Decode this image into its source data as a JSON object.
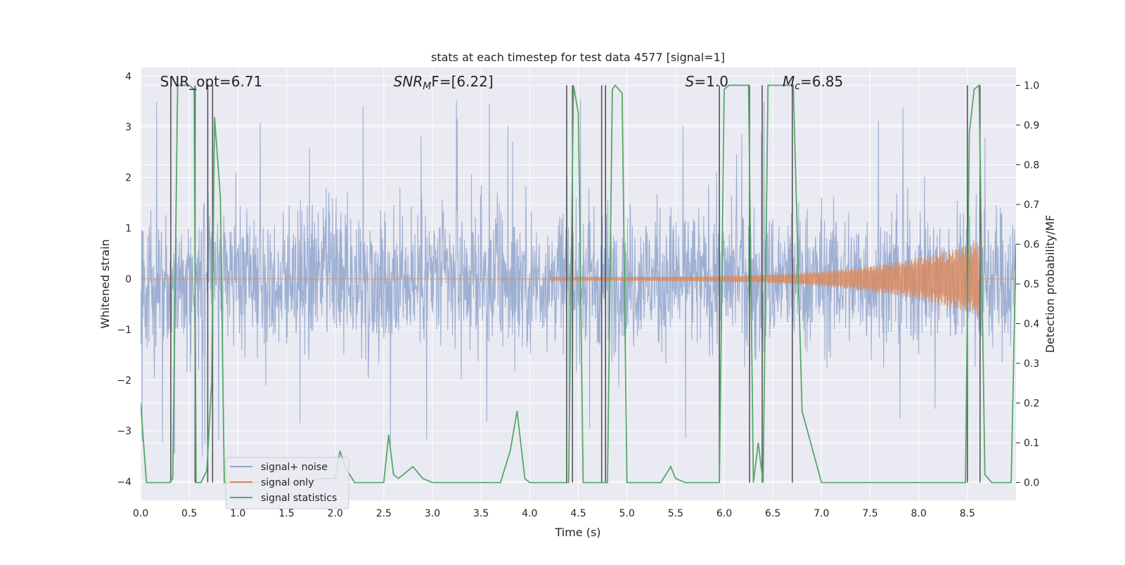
{
  "chart_data": {
    "type": "line",
    "title": "stats at each timestep for test data 4577 [signal=1]",
    "xlabel": "Time (s)",
    "ylabel": "Whitened strain",
    "ylabel_right": "Detection probability/MF",
    "xlim": [
      0.0,
      9.0
    ],
    "ylim": [
      -4.37,
      4.17
    ],
    "ylim_right": [
      -0.045,
      1.045
    ],
    "grid": true,
    "legend_position": "lower-left",
    "x_ticks": [
      "0.0",
      "0.5",
      "1.0",
      "1.5",
      "2.0",
      "2.5",
      "3.0",
      "3.5",
      "4.0",
      "4.5",
      "5.0",
      "5.5",
      "6.0",
      "6.5",
      "7.0",
      "7.5",
      "8.0",
      "8.5"
    ],
    "x_tick_values": [
      0.0,
      0.5,
      1.0,
      1.5,
      2.0,
      2.5,
      3.0,
      3.5,
      4.0,
      4.5,
      5.0,
      5.5,
      6.0,
      6.5,
      7.0,
      7.5,
      8.0,
      8.5
    ],
    "y_ticks": [
      "4",
      "3",
      "2",
      "1",
      "0",
      "−1",
      "−2",
      "−3",
      "−4"
    ],
    "y_tick_values": [
      4,
      3,
      2,
      1,
      0,
      -1,
      -2,
      -3,
      -4
    ],
    "y_ticks_right": [
      "1.0",
      "0.9",
      "0.8",
      "0.7",
      "0.6",
      "0.5",
      "0.4",
      "0.3",
      "0.2",
      "0.1",
      "0.0"
    ],
    "y_tick_values_right": [
      1.0,
      0.9,
      0.8,
      0.7,
      0.6,
      0.5,
      0.4,
      0.3,
      0.2,
      0.1,
      0.0
    ],
    "annotations": [
      {
        "text": "SNR_opt=6.71",
        "x": 0.2
      },
      {
        "text": "SNR",
        "sub": "M",
        "after": "F=[6.22]",
        "italic": true,
        "x": 2.6
      },
      {
        "text": "S",
        "after": "=1.0",
        "italic": true,
        "x": 5.6
      },
      {
        "text": "M",
        "sub": "c",
        "after": "=6.85",
        "italic": true,
        "x": 6.6
      }
    ],
    "series": [
      {
        "name": "signal+ noise",
        "color": "#8fa4cc",
        "kind": "noise",
        "amplitude_typical": 1.3,
        "amplitude_peak": 3.6
      },
      {
        "name": "signal only",
        "color": "#dd8452",
        "kind": "chirp",
        "chirp_start": 4.2,
        "chirp_end": 8.62,
        "peak_amplitude": 0.7
      },
      {
        "name": "signal statistics",
        "color": "#55a868",
        "axis": "right",
        "x": [
          0.0,
          0.06,
          0.2,
          0.3,
          0.33,
          0.38,
          0.5,
          0.55,
          0.57,
          0.62,
          0.68,
          0.73,
          0.76,
          0.82,
          0.86,
          1.0,
          1.2,
          1.35,
          1.5,
          1.7,
          1.85,
          1.95,
          2.0,
          2.05,
          2.1,
          2.2,
          2.3,
          2.4,
          2.5,
          2.55,
          2.6,
          2.65,
          2.7,
          2.8,
          2.9,
          3.0,
          3.2,
          3.5,
          3.7,
          3.8,
          3.87,
          3.95,
          4.0,
          4.2,
          4.4,
          4.45,
          4.5,
          4.55,
          4.6,
          4.75,
          4.8,
          4.85,
          4.88,
          4.95,
          5.0,
          5.2,
          5.35,
          5.45,
          5.5,
          5.6,
          5.7,
          5.95,
          6.0,
          6.05,
          6.25,
          6.3,
          6.35,
          6.4,
          6.45,
          6.5,
          6.66,
          6.71,
          6.8,
          7.0,
          7.5,
          8.0,
          8.48,
          8.52,
          8.57,
          8.62,
          8.68,
          8.75,
          8.85,
          8.9,
          8.95,
          9.0
        ],
        "y": [
          0.2,
          0.0,
          0.0,
          0.0,
          0.01,
          1.0,
          1.0,
          0.99,
          0.0,
          0.0,
          0.03,
          0.25,
          0.92,
          0.72,
          0.0,
          0.0,
          0.0,
          0.0,
          0.0,
          0.0,
          0.01,
          0.01,
          0.01,
          0.08,
          0.04,
          0.0,
          0.0,
          0.0,
          0.0,
          0.12,
          0.02,
          0.01,
          0.02,
          0.04,
          0.01,
          0.0,
          0.0,
          0.0,
          0.0,
          0.08,
          0.18,
          0.01,
          0.0,
          0.0,
          0.0,
          1.0,
          0.93,
          0.0,
          0.0,
          0.0,
          0.0,
          0.99,
          1.0,
          0.98,
          0.0,
          0.0,
          0.0,
          0.04,
          0.01,
          0.0,
          0.0,
          0.0,
          0.99,
          1.0,
          1.0,
          0.0,
          0.1,
          0.0,
          1.0,
          1.0,
          1.0,
          1.0,
          0.18,
          0.0,
          0.0,
          0.0,
          0.0,
          0.88,
          0.99,
          1.0,
          0.02,
          0.0,
          0.0,
          0.0,
          0.0,
          0.6
        ]
      }
    ],
    "vertical_markers": [
      0.31,
      0.56,
      0.69,
      0.74,
      4.38,
      4.44,
      4.74,
      4.78,
      5.95,
      6.26,
      6.39,
      6.7,
      8.5,
      8.63
    ]
  }
}
